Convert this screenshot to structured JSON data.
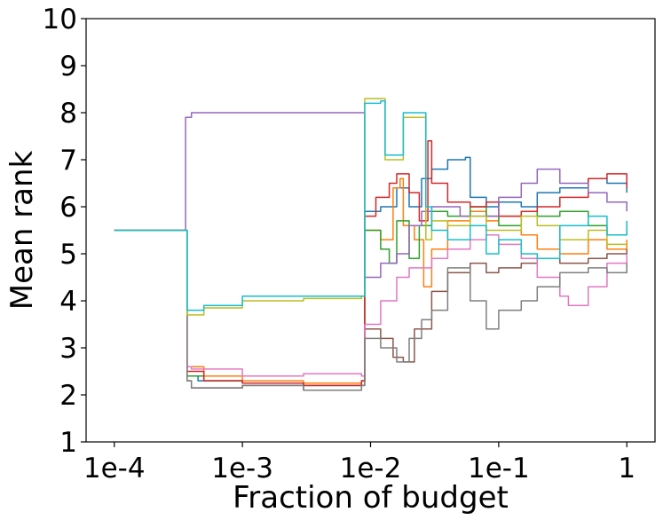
{
  "chart_data": {
    "type": "line",
    "title": "",
    "xlabel": "Fraction of budget",
    "ylabel": "Mean rank",
    "x_scale": "log",
    "xlim": [
      0.0001,
      1
    ],
    "ylim": [
      1,
      10
    ],
    "x_ticks": [
      {
        "value": 0.0001,
        "label": "1e-4"
      },
      {
        "value": 0.001,
        "label": "1e-3"
      },
      {
        "value": 0.01,
        "label": "1e-2"
      },
      {
        "value": 0.1,
        "label": "1e-1"
      },
      {
        "value": 1,
        "label": "1"
      }
    ],
    "y_ticks": [
      {
        "value": 1,
        "label": "1"
      },
      {
        "value": 2,
        "label": "2"
      },
      {
        "value": 3,
        "label": "3"
      },
      {
        "value": 4,
        "label": "4"
      },
      {
        "value": 5,
        "label": "5"
      },
      {
        "value": 6,
        "label": "6"
      },
      {
        "value": 7,
        "label": "7"
      },
      {
        "value": 8,
        "label": "8"
      },
      {
        "value": 9,
        "label": "9"
      },
      {
        "value": 10,
        "label": "10"
      }
    ],
    "grid": false,
    "legend": "none",
    "series": [
      {
        "color": "#1f77b4",
        "points": [
          [
            0.0001,
            5.5
          ],
          [
            0.00035,
            5.5
          ],
          [
            0.00037,
            2.4
          ],
          [
            0.00045,
            2.3
          ],
          [
            0.001,
            2.25
          ],
          [
            0.003,
            2.2
          ],
          [
            0.0085,
            2.3
          ],
          [
            0.009,
            5.9
          ],
          [
            0.012,
            6.0
          ],
          [
            0.016,
            6.4
          ],
          [
            0.02,
            6.0
          ],
          [
            0.025,
            6.6
          ],
          [
            0.03,
            6.8
          ],
          [
            0.04,
            7.0
          ],
          [
            0.055,
            7.05
          ],
          [
            0.06,
            6.2
          ],
          [
            0.08,
            6.0
          ],
          [
            0.1,
            6.1
          ],
          [
            0.15,
            6.0
          ],
          [
            0.2,
            6.3
          ],
          [
            0.3,
            6.4
          ],
          [
            0.5,
            6.6
          ],
          [
            0.7,
            6.5
          ],
          [
            1,
            6.3
          ]
        ]
      },
      {
        "color": "#ff7f0e",
        "points": [
          [
            0.0001,
            5.5
          ],
          [
            0.00035,
            5.5
          ],
          [
            0.00037,
            2.6
          ],
          [
            0.0005,
            2.4
          ],
          [
            0.001,
            2.3
          ],
          [
            0.003,
            2.25
          ],
          [
            0.0085,
            2.3
          ],
          [
            0.009,
            5.5
          ],
          [
            0.012,
            5.3
          ],
          [
            0.015,
            6.4
          ],
          [
            0.017,
            6.6
          ],
          [
            0.018,
            5.6
          ],
          [
            0.022,
            5.3
          ],
          [
            0.026,
            4.3
          ],
          [
            0.03,
            5.1
          ],
          [
            0.04,
            5.7
          ],
          [
            0.06,
            5.9
          ],
          [
            0.08,
            5.7
          ],
          [
            0.1,
            5.8
          ],
          [
            0.15,
            5.4
          ],
          [
            0.2,
            5.1
          ],
          [
            0.3,
            5.0
          ],
          [
            0.5,
            5.3
          ],
          [
            0.7,
            5.1
          ],
          [
            1,
            5.3
          ]
        ]
      },
      {
        "color": "#2ca02c",
        "points": [
          [
            0.0001,
            5.5
          ],
          [
            0.00035,
            5.5
          ],
          [
            0.00037,
            2.4
          ],
          [
            0.0005,
            2.3
          ],
          [
            0.001,
            2.25
          ],
          [
            0.003,
            2.2
          ],
          [
            0.0085,
            2.3
          ],
          [
            0.009,
            5.5
          ],
          [
            0.012,
            5.1
          ],
          [
            0.014,
            4.8
          ],
          [
            0.016,
            5.7
          ],
          [
            0.02,
            4.9
          ],
          [
            0.024,
            5.6
          ],
          [
            0.03,
            5.9
          ],
          [
            0.04,
            5.8
          ],
          [
            0.06,
            6.0
          ],
          [
            0.08,
            5.8
          ],
          [
            0.1,
            5.6
          ],
          [
            0.15,
            5.9
          ],
          [
            0.2,
            5.8
          ],
          [
            0.3,
            5.9
          ],
          [
            0.5,
            5.6
          ],
          [
            0.7,
            5.4
          ],
          [
            1,
            5.5
          ]
        ]
      },
      {
        "color": "#d62728",
        "points": [
          [
            0.0001,
            5.5
          ],
          [
            0.00035,
            5.5
          ],
          [
            0.00037,
            2.5
          ],
          [
            0.0005,
            2.3
          ],
          [
            0.001,
            2.25
          ],
          [
            0.003,
            2.2
          ],
          [
            0.0085,
            2.3
          ],
          [
            0.009,
            5.8
          ],
          [
            0.011,
            6.2
          ],
          [
            0.014,
            6.5
          ],
          [
            0.016,
            6.7
          ],
          [
            0.02,
            6.3
          ],
          [
            0.024,
            5.7
          ],
          [
            0.028,
            7.4
          ],
          [
            0.03,
            6.5
          ],
          [
            0.04,
            6.1
          ],
          [
            0.06,
            6.0
          ],
          [
            0.08,
            6.1
          ],
          [
            0.1,
            5.8
          ],
          [
            0.15,
            5.9
          ],
          [
            0.2,
            6.0
          ],
          [
            0.3,
            6.2
          ],
          [
            0.5,
            6.6
          ],
          [
            0.7,
            6.7
          ],
          [
            1,
            6.4
          ]
        ]
      },
      {
        "color": "#9467bd",
        "points": [
          [
            0.0001,
            5.5
          ],
          [
            0.00035,
            5.5
          ],
          [
            0.00036,
            7.9
          ],
          [
            0.0004,
            8.0
          ],
          [
            0.0085,
            8.0
          ],
          [
            0.009,
            4.5
          ],
          [
            0.012,
            4.8
          ],
          [
            0.016,
            5.0
          ],
          [
            0.02,
            5.6
          ],
          [
            0.025,
            5.9
          ],
          [
            0.03,
            6.0
          ],
          [
            0.05,
            5.8
          ],
          [
            0.08,
            5.8
          ],
          [
            0.1,
            6.2
          ],
          [
            0.15,
            6.5
          ],
          [
            0.2,
            6.8
          ],
          [
            0.3,
            6.5
          ],
          [
            0.5,
            6.3
          ],
          [
            0.7,
            6.1
          ],
          [
            1,
            5.9
          ]
        ]
      },
      {
        "color": "#8c564b",
        "points": [
          [
            0.0001,
            5.5
          ],
          [
            0.00035,
            5.5
          ],
          [
            0.00037,
            2.3
          ],
          [
            0.0004,
            2.15
          ],
          [
            0.001,
            2.2
          ],
          [
            0.003,
            2.1
          ],
          [
            0.0085,
            2.2
          ],
          [
            0.009,
            3.4
          ],
          [
            0.012,
            3.2
          ],
          [
            0.015,
            2.8
          ],
          [
            0.018,
            2.7
          ],
          [
            0.022,
            3.4
          ],
          [
            0.03,
            4.2
          ],
          [
            0.04,
            4.6
          ],
          [
            0.06,
            4.8
          ],
          [
            0.08,
            4.6
          ],
          [
            0.1,
            4.7
          ],
          [
            0.15,
            4.8
          ],
          [
            0.2,
            4.9
          ],
          [
            0.3,
            4.8
          ],
          [
            0.5,
            4.9
          ],
          [
            0.7,
            5.0
          ],
          [
            1,
            5.1
          ]
        ]
      },
      {
        "color": "#e377c2",
        "points": [
          [
            0.0001,
            5.5
          ],
          [
            0.00035,
            5.5
          ],
          [
            0.00037,
            2.6
          ],
          [
            0.0004,
            2.55
          ],
          [
            0.001,
            2.4
          ],
          [
            0.003,
            2.45
          ],
          [
            0.0085,
            2.4
          ],
          [
            0.009,
            3.5
          ],
          [
            0.012,
            4.0
          ],
          [
            0.016,
            4.5
          ],
          [
            0.02,
            4.7
          ],
          [
            0.03,
            4.9
          ],
          [
            0.04,
            5.1
          ],
          [
            0.06,
            5.3
          ],
          [
            0.08,
            5.4
          ],
          [
            0.1,
            5.2
          ],
          [
            0.15,
            4.9
          ],
          [
            0.2,
            4.5
          ],
          [
            0.3,
            4.1
          ],
          [
            0.35,
            3.9
          ],
          [
            0.5,
            4.3
          ],
          [
            0.7,
            4.8
          ],
          [
            1,
            5.0
          ]
        ]
      },
      {
        "color": "#7f7f7f",
        "points": [
          [
            0.0001,
            5.5
          ],
          [
            0.00035,
            5.5
          ],
          [
            0.00037,
            2.3
          ],
          [
            0.0004,
            2.15
          ],
          [
            0.001,
            2.2
          ],
          [
            0.003,
            2.1
          ],
          [
            0.0085,
            2.2
          ],
          [
            0.009,
            3.2
          ],
          [
            0.012,
            3.0
          ],
          [
            0.016,
            2.7
          ],
          [
            0.02,
            3.2
          ],
          [
            0.025,
            3.6
          ],
          [
            0.03,
            3.8
          ],
          [
            0.04,
            4.7
          ],
          [
            0.06,
            4.0
          ],
          [
            0.08,
            3.4
          ],
          [
            0.1,
            3.8
          ],
          [
            0.15,
            4.0
          ],
          [
            0.2,
            4.3
          ],
          [
            0.3,
            4.6
          ],
          [
            0.5,
            4.7
          ],
          [
            0.7,
            4.6
          ],
          [
            1,
            4.8
          ]
        ]
      },
      {
        "color": "#bcbd22",
        "points": [
          [
            0.0001,
            5.5
          ],
          [
            0.00035,
            5.5
          ],
          [
            0.00037,
            3.7
          ],
          [
            0.0005,
            3.85
          ],
          [
            0.001,
            4.0
          ],
          [
            0.003,
            4.05
          ],
          [
            0.0085,
            4.1
          ],
          [
            0.009,
            8.3
          ],
          [
            0.012,
            8.3
          ],
          [
            0.013,
            7.0
          ],
          [
            0.016,
            7.0
          ],
          [
            0.018,
            7.9
          ],
          [
            0.025,
            7.9
          ],
          [
            0.027,
            5.3
          ],
          [
            0.03,
            5.7
          ],
          [
            0.04,
            5.6
          ],
          [
            0.06,
            5.8
          ],
          [
            0.08,
            5.5
          ],
          [
            0.1,
            5.5
          ],
          [
            0.15,
            5.8
          ],
          [
            0.2,
            5.6
          ],
          [
            0.3,
            5.3
          ],
          [
            0.5,
            5.5
          ],
          [
            0.7,
            5.2
          ],
          [
            1,
            5.2
          ]
        ]
      },
      {
        "color": "#17becf",
        "points": [
          [
            0.0001,
            5.5
          ],
          [
            0.00035,
            5.5
          ],
          [
            0.00037,
            3.8
          ],
          [
            0.0005,
            3.9
          ],
          [
            0.001,
            4.1
          ],
          [
            0.003,
            4.1
          ],
          [
            0.0085,
            4.1
          ],
          [
            0.009,
            8.2
          ],
          [
            0.012,
            8.25
          ],
          [
            0.013,
            7.1
          ],
          [
            0.016,
            7.1
          ],
          [
            0.018,
            8.0
          ],
          [
            0.025,
            8.0
          ],
          [
            0.027,
            6.0
          ],
          [
            0.03,
            5.5
          ],
          [
            0.04,
            5.3
          ],
          [
            0.06,
            5.6
          ],
          [
            0.08,
            5.0
          ],
          [
            0.1,
            5.3
          ],
          [
            0.15,
            5.0
          ],
          [
            0.2,
            4.9
          ],
          [
            0.3,
            5.6
          ],
          [
            0.5,
            5.8
          ],
          [
            0.7,
            5.4
          ],
          [
            1,
            5.7
          ]
        ]
      }
    ]
  }
}
